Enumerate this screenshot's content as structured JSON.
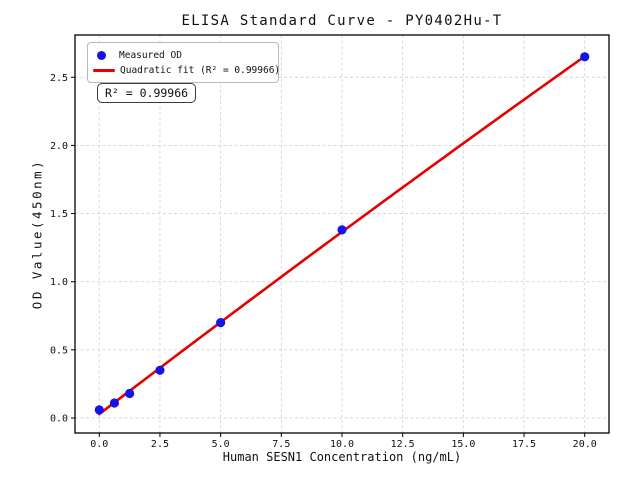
{
  "legend": {
    "measured_label": "Measured OD",
    "fit_label": "Quadratic fit (R² = 0.99966)"
  },
  "annotation": {
    "r_squared_text": "R² = 0.99966"
  },
  "colors": {
    "point": "#1414e6",
    "fit_line": "#e60000",
    "grid": "#d4d4d4",
    "frame": "#000000",
    "tick": "#000000",
    "background": "#ffffff",
    "legend_border": "#b8b8b8"
  },
  "chart_data": {
    "type": "scatter",
    "title": "ELISA Standard Curve - PY0402Hu-T",
    "xlabel": "Human SESN1 Concentration (ng/mL)",
    "ylabel": "OD Value(450nm)",
    "series": [
      {
        "name": "Measured OD",
        "type": "scatter",
        "x": [
          0,
          0.625,
          1.25,
          2.5,
          5,
          10,
          20
        ],
        "y": [
          0.06,
          0.11,
          0.18,
          0.35,
          0.7,
          1.38,
          2.65
        ]
      },
      {
        "name": "Quadratic fit (R² = 0.99966)",
        "type": "line",
        "fit": "quadratic",
        "r_squared": 0.99966,
        "x_range": [
          0,
          20
        ]
      }
    ],
    "xlim": [
      -1,
      21
    ],
    "ylim": [
      -0.11,
      2.81
    ],
    "xticks": [
      0,
      2.5,
      5,
      7.5,
      10,
      12.5,
      15,
      17.5,
      20
    ],
    "xtick_labels": [
      "0.0",
      "2.5",
      "5.0",
      "7.5",
      "10.0",
      "12.5",
      "15.0",
      "17.5",
      "20.0"
    ],
    "yticks": [
      0,
      0.5,
      1,
      1.5,
      2,
      2.5
    ],
    "ytick_labels": [
      "0.0",
      "0.5",
      "1.0",
      "1.5",
      "2.0",
      "2.5"
    ],
    "grid": true,
    "legend_position": "upper left"
  }
}
